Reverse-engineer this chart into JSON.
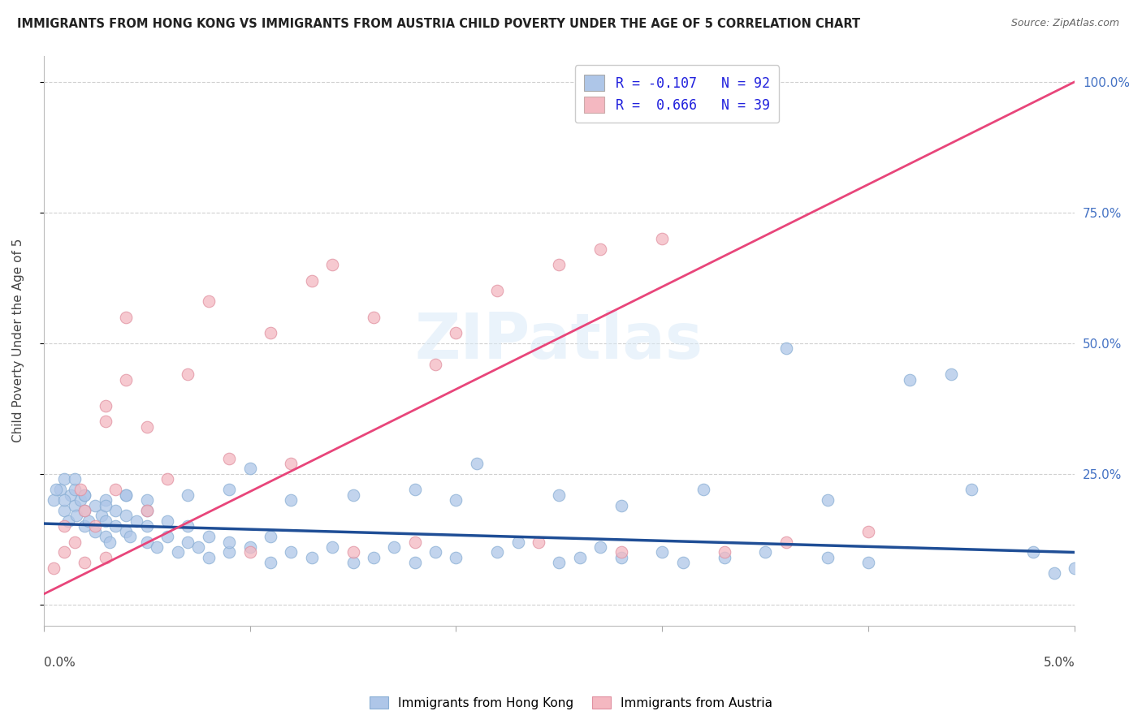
{
  "title": "IMMIGRANTS FROM HONG KONG VS IMMIGRANTS FROM AUSTRIA CHILD POVERTY UNDER THE AGE OF 5 CORRELATION CHART",
  "source": "Source: ZipAtlas.com",
  "ylabel": "Child Poverty Under the Age of 5",
  "legend_hk": "Immigrants from Hong Kong",
  "legend_at": "Immigrants from Austria",
  "R_hk": -0.107,
  "N_hk": 92,
  "R_at": 0.666,
  "N_at": 39,
  "hk_color": "#aec6e8",
  "at_color": "#f4b8c1",
  "hk_line_color": "#1f4e96",
  "at_line_color": "#e8457a",
  "background": "#ffffff",
  "hk_x": [
    0.0005,
    0.0008,
    0.001,
    0.001,
    0.0012,
    0.0013,
    0.0015,
    0.0015,
    0.0016,
    0.0018,
    0.002,
    0.002,
    0.002,
    0.0022,
    0.0025,
    0.0025,
    0.0028,
    0.003,
    0.003,
    0.003,
    0.0032,
    0.0035,
    0.0035,
    0.004,
    0.004,
    0.004,
    0.0042,
    0.0045,
    0.005,
    0.005,
    0.005,
    0.0055,
    0.006,
    0.006,
    0.0065,
    0.007,
    0.007,
    0.0075,
    0.008,
    0.008,
    0.009,
    0.009,
    0.01,
    0.01,
    0.011,
    0.011,
    0.012,
    0.013,
    0.014,
    0.015,
    0.016,
    0.017,
    0.018,
    0.019,
    0.02,
    0.021,
    0.022,
    0.023,
    0.025,
    0.026,
    0.027,
    0.028,
    0.03,
    0.031,
    0.033,
    0.035,
    0.036,
    0.038,
    0.04,
    0.042,
    0.044,
    0.045,
    0.048,
    0.05,
    0.0006,
    0.001,
    0.0015,
    0.002,
    0.003,
    0.004,
    0.005,
    0.007,
    0.009,
    0.012,
    0.015,
    0.018,
    0.02,
    0.025,
    0.028,
    0.032,
    0.038,
    0.049
  ],
  "hk_y": [
    0.2,
    0.22,
    0.18,
    0.24,
    0.16,
    0.21,
    0.19,
    0.22,
    0.17,
    0.2,
    0.15,
    0.18,
    0.21,
    0.16,
    0.14,
    0.19,
    0.17,
    0.13,
    0.16,
    0.2,
    0.12,
    0.15,
    0.18,
    0.14,
    0.17,
    0.21,
    0.13,
    0.16,
    0.12,
    0.15,
    0.18,
    0.11,
    0.13,
    0.16,
    0.1,
    0.12,
    0.15,
    0.11,
    0.09,
    0.13,
    0.1,
    0.12,
    0.26,
    0.11,
    0.08,
    0.13,
    0.1,
    0.09,
    0.11,
    0.08,
    0.09,
    0.11,
    0.08,
    0.1,
    0.09,
    0.27,
    0.1,
    0.12,
    0.08,
    0.09,
    0.11,
    0.09,
    0.1,
    0.08,
    0.09,
    0.1,
    0.49,
    0.09,
    0.08,
    0.43,
    0.44,
    0.22,
    0.1,
    0.07,
    0.22,
    0.2,
    0.24,
    0.21,
    0.19,
    0.21,
    0.2,
    0.21,
    0.22,
    0.2,
    0.21,
    0.22,
    0.2,
    0.21,
    0.19,
    0.22,
    0.2,
    0.06
  ],
  "at_x": [
    0.0005,
    0.001,
    0.001,
    0.0015,
    0.0018,
    0.002,
    0.002,
    0.0025,
    0.003,
    0.003,
    0.003,
    0.0035,
    0.004,
    0.004,
    0.005,
    0.005,
    0.006,
    0.007,
    0.008,
    0.009,
    0.01,
    0.011,
    0.012,
    0.013,
    0.014,
    0.015,
    0.016,
    0.018,
    0.019,
    0.02,
    0.022,
    0.024,
    0.025,
    0.027,
    0.028,
    0.03,
    0.033,
    0.036,
    0.04
  ],
  "at_y": [
    0.07,
    0.1,
    0.15,
    0.12,
    0.22,
    0.08,
    0.18,
    0.15,
    0.09,
    0.35,
    0.38,
    0.22,
    0.43,
    0.55,
    0.18,
    0.34,
    0.24,
    0.44,
    0.58,
    0.28,
    0.1,
    0.52,
    0.27,
    0.62,
    0.65,
    0.1,
    0.55,
    0.12,
    0.46,
    0.52,
    0.6,
    0.12,
    0.65,
    0.68,
    0.1,
    0.7,
    0.1,
    0.12,
    0.14
  ],
  "at_line_x0": 0.0,
  "at_line_y0": 0.02,
  "at_line_x1": 0.05,
  "at_line_y1": 1.0,
  "hk_line_x0": 0.0,
  "hk_line_y0": 0.155,
  "hk_line_x1": 0.05,
  "hk_line_y1": 0.1,
  "xlim": [
    0.0,
    0.05
  ],
  "ylim": [
    -0.04,
    1.05
  ],
  "yticks": [
    0.0,
    0.25,
    0.5,
    0.75,
    1.0
  ],
  "ytick_labels": [
    "",
    "25.0%",
    "50.0%",
    "75.0%",
    "100.0%"
  ]
}
